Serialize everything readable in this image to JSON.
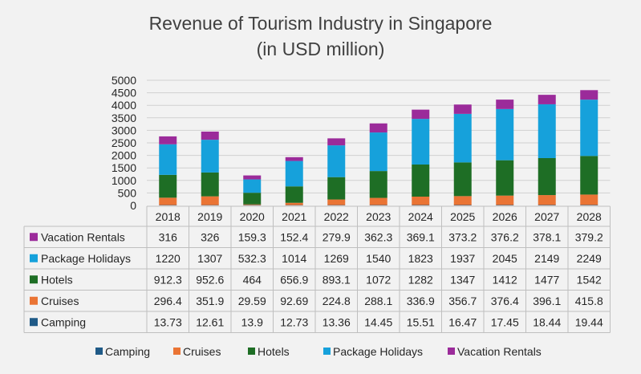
{
  "chart_data": {
    "type": "bar",
    "stacked": true,
    "title": "Revenue of Tourism Industry in Singapore",
    "subtitle": "(in USD million)",
    "categories": [
      "2018",
      "2019",
      "2020",
      "2021",
      "2022",
      "2023",
      "2024",
      "2025",
      "2026",
      "2027",
      "2028"
    ],
    "yticks": [
      "5000",
      "4500",
      "4000",
      "3500",
      "3000",
      "2500",
      "2000",
      "1500",
      "1000",
      "500",
      "0"
    ],
    "ylim": [
      0,
      5000
    ],
    "grid": true,
    "legend_position": "bottom",
    "series": [
      {
        "name": "Camping",
        "color": "#1f5a87",
        "values": [
          13.73,
          12.61,
          13.9,
          12.73,
          13.36,
          14.45,
          15.51,
          16.47,
          17.45,
          18.44,
          19.44
        ],
        "labels": [
          "13.73",
          "12.61",
          "13.9",
          "12.73",
          "13.36",
          "14.45",
          "15.51",
          "16.47",
          "17.45",
          "18.44",
          "19.44"
        ]
      },
      {
        "name": "Cruises",
        "color": "#ea7434",
        "values": [
          296.4,
          351.9,
          29.59,
          92.69,
          224.8,
          288.1,
          336.9,
          356.7,
          376.4,
          396.1,
          415.8
        ],
        "labels": [
          "296.4",
          "351.9",
          "29.59",
          "92.69",
          "224.8",
          "288.1",
          "336.9",
          "356.7",
          "376.4",
          "396.1",
          "415.8"
        ]
      },
      {
        "name": "Hotels",
        "color": "#1e6e25",
        "values": [
          912.3,
          952.6,
          464,
          656.9,
          893.1,
          1072,
          1282,
          1347,
          1412,
          1477,
          1542
        ],
        "labels": [
          "912.3",
          "952.6",
          "464",
          "656.9",
          "893.1",
          "1072",
          "1282",
          "1347",
          "1412",
          "1477",
          "1542"
        ]
      },
      {
        "name": "Package Holidays",
        "color": "#16a1db",
        "values": [
          1220,
          1307,
          532.3,
          1014,
          1269,
          1540,
          1823,
          1937,
          2045,
          2149,
          2249
        ],
        "labels": [
          "1220",
          "1307",
          "532.3",
          "1014",
          "1269",
          "1540",
          "1823",
          "1937",
          "2045",
          "2149",
          "2249"
        ]
      },
      {
        "name": "Vacation Rentals",
        "color": "#9b2b9a",
        "values": [
          316,
          326,
          159.3,
          152.4,
          279.9,
          362.3,
          369.1,
          373.2,
          376.2,
          378.1,
          379.2
        ],
        "labels": [
          "316",
          "326",
          "159.3",
          "152.4",
          "279.9",
          "362.3",
          "369.1",
          "373.2",
          "376.2",
          "378.1",
          "379.2"
        ]
      }
    ]
  }
}
